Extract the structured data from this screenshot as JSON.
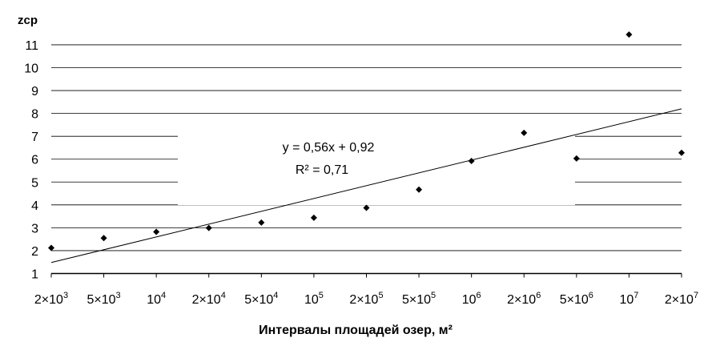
{
  "chart_data": {
    "type": "scatter",
    "title": "",
    "ylabel": "zср",
    "xlabel": "Интервалы площадей озер, м²",
    "ylim": [
      1,
      12
    ],
    "yticks": [
      1,
      2,
      3,
      4,
      5,
      6,
      7,
      8,
      9,
      10,
      11
    ],
    "grid": "horizontal",
    "legend": "none",
    "categories": [
      {
        "base": "2×10",
        "exp": "3"
      },
      {
        "base": "5×10",
        "exp": "3"
      },
      {
        "base": "10",
        "exp": "4"
      },
      {
        "base": "2×10",
        "exp": "4"
      },
      {
        "base": "5×10",
        "exp": "4"
      },
      {
        "base": "10",
        "exp": "5"
      },
      {
        "base": "2×10",
        "exp": "5"
      },
      {
        "base": "5×10",
        "exp": "5"
      },
      {
        "base": "10",
        "exp": "6"
      },
      {
        "base": "2×10",
        "exp": "6"
      },
      {
        "base": "5×10",
        "exp": "6"
      },
      {
        "base": "10",
        "exp": "7"
      },
      {
        "base": "2×10",
        "exp": "7"
      }
    ],
    "values": [
      2.12,
      2.55,
      2.82,
      2.99,
      3.23,
      3.44,
      3.87,
      4.67,
      5.92,
      7.15,
      6.03,
      11.45,
      6.28
    ],
    "trendline": {
      "slope": 0.56,
      "intercept": 0.92,
      "equation": "y = 0,56x + 0,92",
      "r2_label": "R² = 0,71"
    },
    "colors": {
      "marker": "#000000",
      "grid": "#000000",
      "trend": "#000000"
    }
  }
}
